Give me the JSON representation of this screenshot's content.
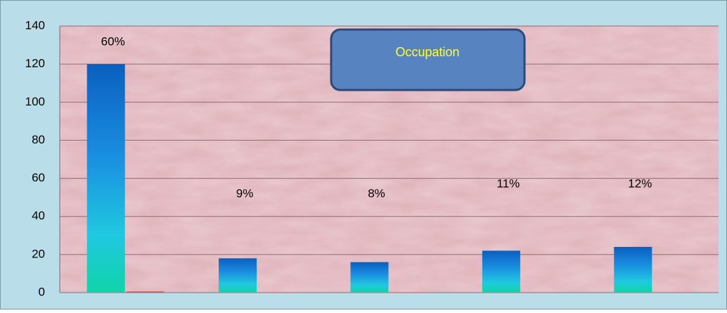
{
  "chart_data": {
    "type": "bar",
    "title": "Occupation",
    "categories": [
      null,
      null,
      null,
      null,
      null
    ],
    "series": [
      {
        "color": "#0a6ccc",
        "values": [
          120,
          18,
          16,
          22,
          24
        ]
      },
      {
        "color": "#e0504a",
        "values": [
          0.6,
          0.09,
          0.08,
          0.11,
          0.12
        ],
        "value_labels": [
          "60%",
          "9%",
          "8%",
          "11%",
          "12%"
        ]
      }
    ],
    "ylim": [
      0,
      140
    ],
    "yticks": [
      0,
      20,
      40,
      60,
      80,
      100,
      120,
      140
    ],
    "grid": true
  }
}
